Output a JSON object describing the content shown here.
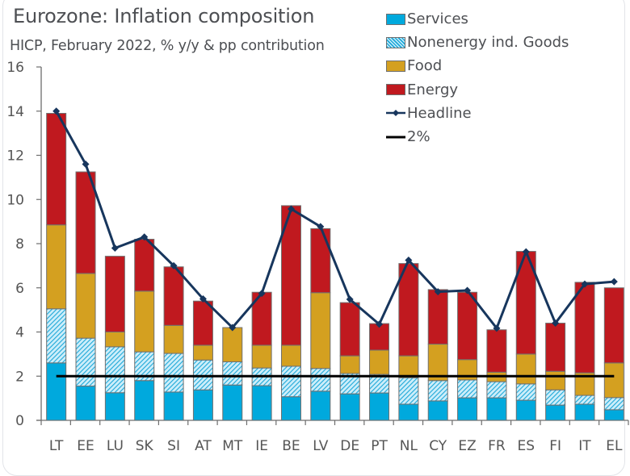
{
  "header": {
    "title": "Eurozone: Inflation composition",
    "subtitle": "HICP, February 2022, % y/y & pp contribution"
  },
  "legend": [
    {
      "key": "services",
      "label": "Services",
      "kind": "box"
    },
    {
      "key": "neig",
      "label": "Nonenergy ind. Goods",
      "kind": "hatch"
    },
    {
      "key": "food",
      "label": "Food",
      "kind": "box"
    },
    {
      "key": "energy",
      "label": "Energy",
      "kind": "box"
    },
    {
      "key": "headline",
      "label": "Headline",
      "kind": "line-marker"
    },
    {
      "key": "target",
      "label": "2%",
      "kind": "line"
    }
  ],
  "colors": {
    "services": "#00a9dd",
    "neig_bg": "#cdeefa",
    "neig_stripe": "#1ea8d8",
    "food": "#d4a020",
    "energy": "#c0191f",
    "headline": "#17365d",
    "target": "#000000",
    "axis": "#6d6d6d"
  },
  "chart_data": {
    "type": "bar",
    "stacked": true,
    "title": "Eurozone: Inflation composition",
    "subtitle": "HICP, February 2022, % y/y & pp contribution",
    "xlabel": "",
    "ylabel": "",
    "ylim": [
      0,
      16
    ],
    "yticks": [
      0,
      2,
      4,
      6,
      8,
      10,
      12,
      14,
      16
    ],
    "grid": false,
    "legend_position": "top-right",
    "categories": [
      "LT",
      "EE",
      "LU",
      "SK",
      "SI",
      "AT",
      "MT",
      "IE",
      "BE",
      "LV",
      "DE",
      "PT",
      "NL",
      "CY",
      "EZ",
      "FR",
      "ES",
      "FI",
      "IT",
      "EL"
    ],
    "series": [
      {
        "name": "Services",
        "key": "services",
        "type": "bar",
        "values": [
          2.6,
          1.55,
          1.25,
          1.8,
          1.28,
          1.38,
          1.6,
          1.57,
          1.07,
          1.32,
          1.2,
          1.24,
          0.73,
          0.88,
          1.02,
          1.02,
          0.91,
          0.69,
          0.73,
          0.48
        ]
      },
      {
        "name": "Nonenergy ind. Goods",
        "key": "neig",
        "type": "bar",
        "values": [
          2.45,
          2.17,
          2.08,
          1.3,
          1.75,
          1.35,
          1.05,
          0.8,
          1.38,
          1.03,
          0.92,
          0.84,
          1.2,
          0.92,
          0.81,
          0.73,
          0.74,
          0.69,
          0.4,
          0.55
        ]
      },
      {
        "name": "Food",
        "key": "food",
        "type": "bar",
        "values": [
          3.8,
          2.93,
          0.67,
          2.75,
          1.27,
          0.67,
          1.55,
          1.03,
          0.95,
          3.43,
          0.8,
          1.1,
          0.99,
          1.65,
          0.92,
          0.43,
          1.35,
          0.84,
          1.02,
          1.57
        ]
      },
      {
        "name": "Energy",
        "key": "energy",
        "type": "bar",
        "values": [
          5.05,
          4.6,
          3.43,
          2.35,
          2.65,
          2.0,
          0.0,
          2.4,
          6.32,
          2.9,
          2.41,
          1.2,
          4.18,
          2.47,
          3.05,
          1.92,
          4.65,
          2.18,
          4.1,
          3.4
        ]
      },
      {
        "name": "Headline",
        "key": "headline",
        "type": "line",
        "values": [
          14.0,
          11.6,
          7.8,
          8.3,
          7.0,
          5.5,
          4.2,
          5.75,
          9.57,
          8.77,
          5.48,
          4.35,
          7.25,
          5.82,
          5.88,
          4.17,
          7.63,
          4.4,
          6.17,
          6.28
        ]
      },
      {
        "name": "2%",
        "key": "target",
        "type": "line",
        "values": [
          2,
          2,
          2,
          2,
          2,
          2,
          2,
          2,
          2,
          2,
          2,
          2,
          2,
          2,
          2,
          2,
          2,
          2,
          2,
          2
        ]
      }
    ]
  }
}
